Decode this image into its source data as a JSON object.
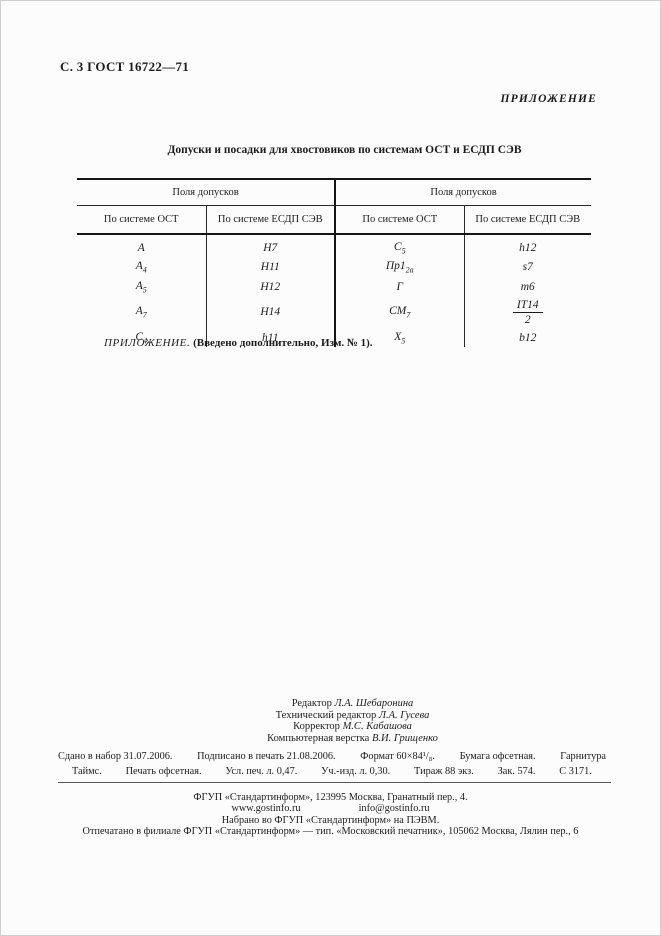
{
  "page": {
    "header": "С. 3 ГОСТ 16722—71",
    "annex_label": "ПРИЛОЖЕНИЕ"
  },
  "table": {
    "title": "Допуски и посадки для хвостовиков по системам ОСТ и ЕСДП СЭВ",
    "group_header": "Поля допусков",
    "col_headers": [
      "По системе ОСТ",
      "По системе ЕСДП СЭВ",
      "По системе ОСТ",
      "По системе ЕСДП СЭВ"
    ],
    "rows": [
      [
        "А",
        "H7",
        "С_5",
        "h12"
      ],
      [
        "А_4",
        "H11",
        "Пр1_2а",
        "s7"
      ],
      [
        "А_5",
        "H12",
        "Г",
        "m6"
      ],
      [
        "А_7",
        "H14",
        "СМ_7",
        {
          "frac": [
            "IT14",
            "2"
          ]
        }
      ],
      [
        "С_4",
        "h11",
        "Х_5",
        "b12"
      ]
    ]
  },
  "note": {
    "label": "ПРИЛОЖЕНИЕ.",
    "text": "(Введено дополнительно, Изм. № 1)."
  },
  "credits": {
    "lines": [
      {
        "role": "Редактор",
        "name": "Л.А. Шебаронина"
      },
      {
        "role": "Технический редактор",
        "name": "Л.А. Гусева"
      },
      {
        "role": "Корректор",
        "name": "М.С. Кабашова"
      },
      {
        "role": "Компьютерная верстка",
        "name": "В.И. Грищенко"
      }
    ]
  },
  "imprint": {
    "line1": [
      "Сдано в набор 31.07.2006.",
      "Подписано в печать 21.08.2006.",
      "Формат 60×84¹/₈.",
      "Бумага офсетная.",
      "Гарнитура"
    ],
    "line2": [
      "Таймс.",
      "Печать офсетная.",
      "Усл. печ. л.  0,47.",
      "Уч.-изд. л.  0,30.",
      "Тираж 88 экз.",
      "Зак. 574.",
      "С 3171."
    ]
  },
  "footer": {
    "address": "ФГУП «Стандартинформ», 123995 Москва, Гранатный пер., 4.",
    "web": "www.gostinfo.ru",
    "email": "info@gostinfo.ru",
    "typeset": "Набрано во ФГУП «Стандартинформ» на ПЭВМ.",
    "printed": "Отпечатано в филиале ФГУП «Стандартинформ» — тип. «Московский печатник», 105062 Москва, Лялин пер., 6"
  }
}
